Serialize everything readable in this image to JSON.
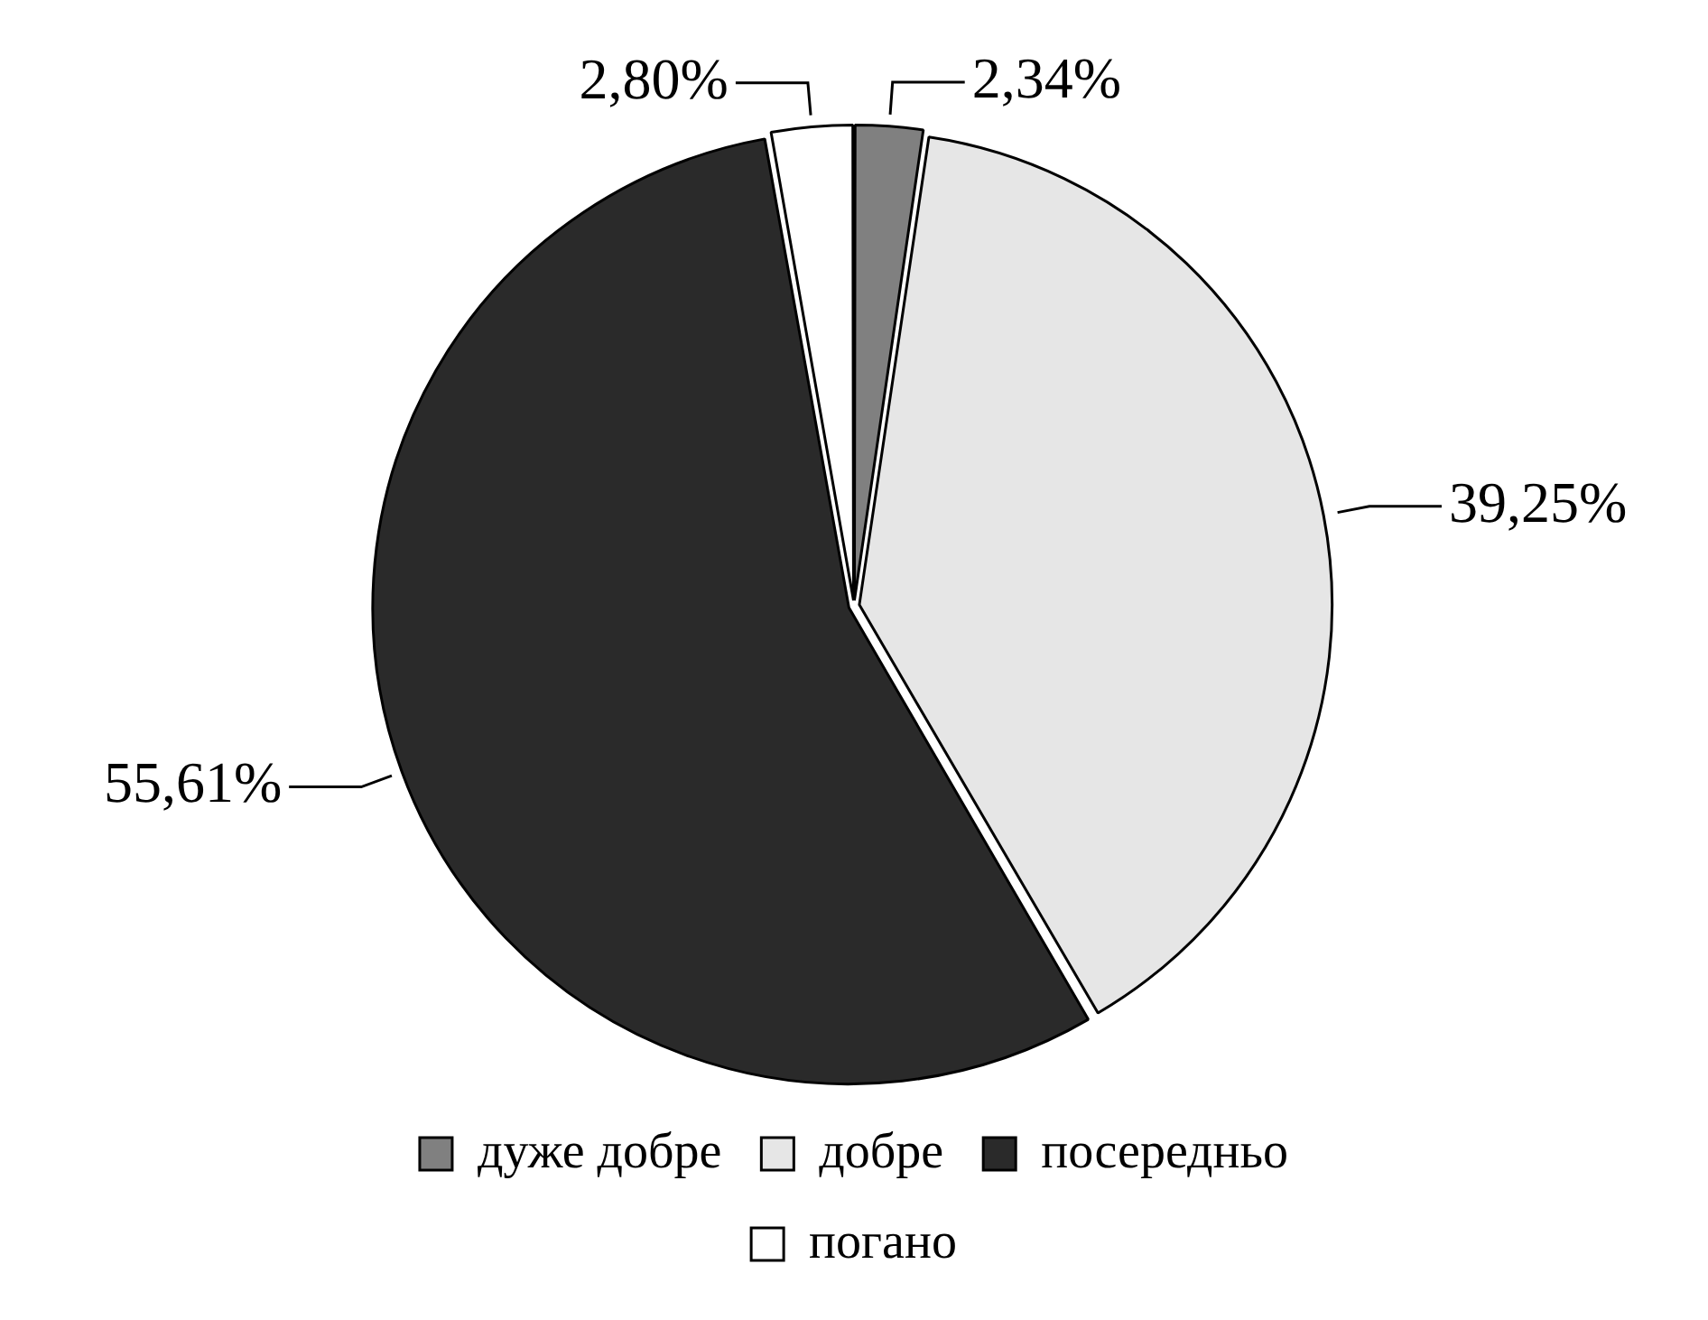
{
  "chart_data": {
    "type": "pie",
    "categories": [
      "дуже добре",
      "добре",
      "посередньо",
      "погано"
    ],
    "values": [
      2.34,
      39.25,
      55.61,
      2.8
    ],
    "value_labels": [
      "2,34%",
      "39,25%",
      "55,61%",
      "2,80%"
    ],
    "colors": [
      "#808080",
      "#e6e6e6",
      "#2a2a2a",
      "#ffffff"
    ],
    "legend": "bottom"
  }
}
